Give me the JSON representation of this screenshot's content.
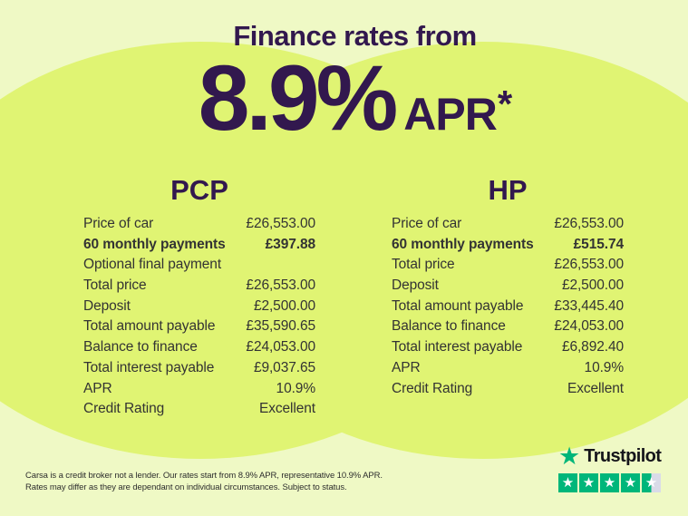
{
  "colors": {
    "bg-pale": "#eff9c5",
    "bg-circle": "#e0f473",
    "purple": "#32184e",
    "text-dark": "#333333",
    "trust-green": "#00b67a",
    "trust-gray": "#d9dbe8"
  },
  "header": {
    "title": "Finance rates from",
    "rate": "8.9%",
    "rate_unit": "APR",
    "rate_note": "*"
  },
  "columns": [
    {
      "header": "PCP",
      "rows": [
        {
          "label": "Price of car",
          "value": "£26,553.00"
        },
        {
          "label": "60 monthly payments",
          "value": "£397.88"
        },
        {
          "label": "Optional final payment",
          "value": ""
        },
        {
          "label": "Total price",
          "value": "£26,553.00"
        },
        {
          "label": "Deposit",
          "value": "£2,500.00"
        },
        {
          "label": "Total amount payable",
          "value": "£35,590.65"
        },
        {
          "label": "Balance to finance",
          "value": "£24,053.00"
        },
        {
          "label": "Total interest payable",
          "value": "£9,037.65"
        },
        {
          "label": "APR",
          "value": "10.9%"
        },
        {
          "label": "Credit Rating",
          "value": "Excellent"
        }
      ]
    },
    {
      "header": "HP",
      "rows": [
        {
          "label": "Price of car",
          "value": "£26,553.00"
        },
        {
          "label": "60 monthly payments",
          "value": "£515.74"
        },
        {
          "label": "Total price",
          "value": "£26,553.00"
        },
        {
          "label": "Deposit",
          "value": "£2,500.00"
        },
        {
          "label": "Total amount payable",
          "value": "£33,445.40"
        },
        {
          "label": "Balance to finance",
          "value": "£24,053.00"
        },
        {
          "label": "Total interest payable",
          "value": "£6,892.40"
        },
        {
          "label": "APR",
          "value": "10.9%"
        },
        {
          "label": "Credit Rating",
          "value": "Excellent"
        }
      ]
    }
  ],
  "disclaimer": {
    "line1": "Carsa is a credit broker not a lender. Our rates start from 8.9% APR, representative 10.9% APR.",
    "line2": "Rates may differ as they are dependant on individual circumstances. Subject to status."
  },
  "trustpilot": {
    "brand": "Trustpilot",
    "star_char": "★",
    "stars_filled": 4.5,
    "stars_total": 5
  }
}
